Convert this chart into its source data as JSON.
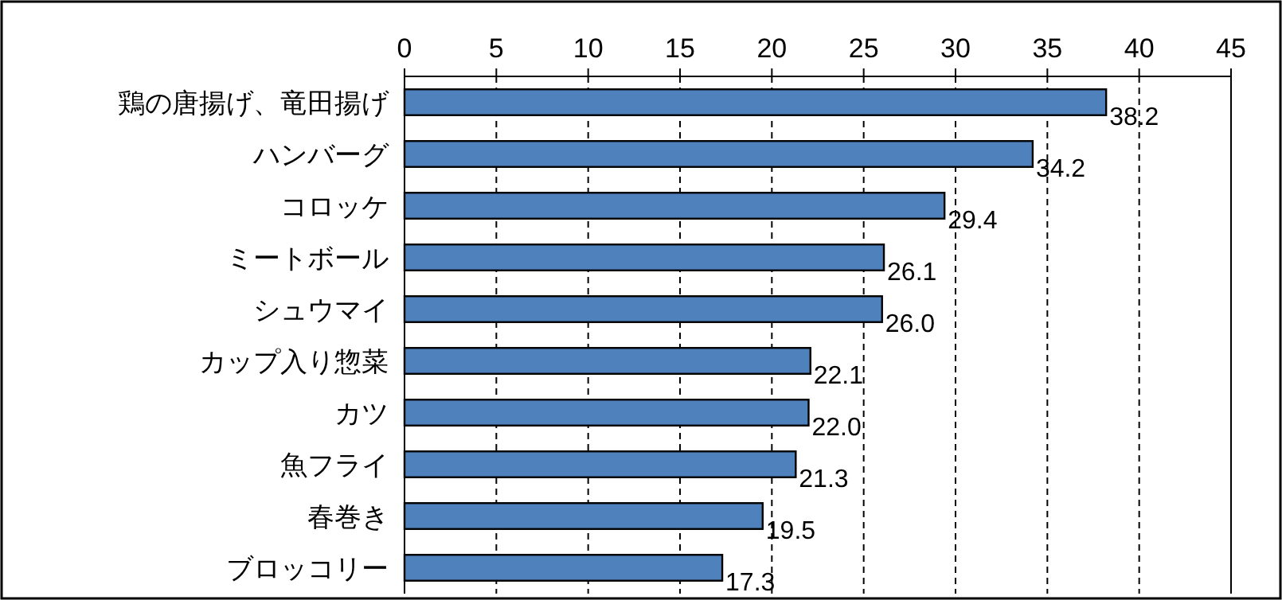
{
  "chart_data": {
    "type": "bar",
    "orientation": "horizontal",
    "categories": [
      "鶏の唐揚げ、竜田揚げ",
      "ハンバーグ",
      "コロッケ",
      "ミートボール",
      "シュウマイ",
      "カップ入り惣菜",
      "カツ",
      "魚フライ",
      "春巻き",
      "ブロッコリー"
    ],
    "values": [
      38.2,
      34.2,
      29.4,
      26.1,
      26.0,
      22.1,
      22.0,
      21.3,
      19.5,
      17.3
    ],
    "value_labels": [
      "38.2",
      "34.2",
      "29.4",
      "26.1",
      "26.0",
      "22.1",
      "22.0",
      "21.3",
      "19.5",
      "17.3"
    ],
    "color": "#4f81bd",
    "xlim": [
      0,
      45
    ],
    "xticks": [
      0,
      5,
      10,
      15,
      20,
      25,
      30,
      35,
      40,
      45
    ],
    "grid": "x"
  }
}
